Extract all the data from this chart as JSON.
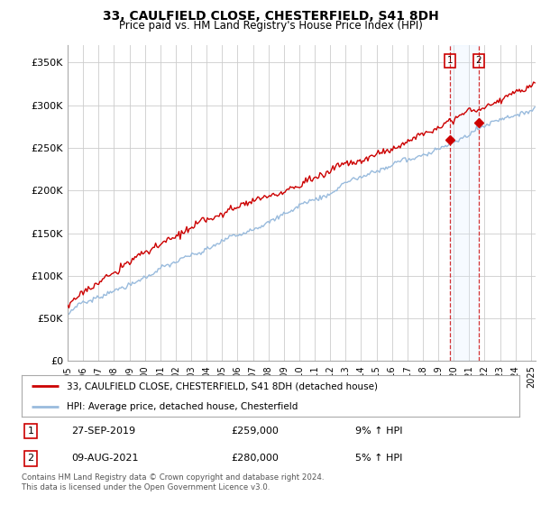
{
  "title": "33, CAULFIELD CLOSE, CHESTERFIELD, S41 8DH",
  "subtitle": "Price paid vs. HM Land Registry's House Price Index (HPI)",
  "ylim": [
    0,
    370000
  ],
  "yticks": [
    0,
    50000,
    100000,
    150000,
    200000,
    250000,
    300000,
    350000
  ],
  "line1_color": "#cc0000",
  "line2_color": "#99bbdd",
  "shade_color": "#ddeeff",
  "background_color": "#ffffff",
  "grid_color": "#cccccc",
  "legend_label1": "33, CAULFIELD CLOSE, CHESTERFIELD, S41 8DH (detached house)",
  "legend_label2": "HPI: Average price, detached house, Chesterfield",
  "sale1_date": "27-SEP-2019",
  "sale1_price": "£259,000",
  "sale1_hpi": "9% ↑ HPI",
  "sale2_date": "09-AUG-2021",
  "sale2_price": "£280,000",
  "sale2_hpi": "5% ↑ HPI",
  "footer": "Contains HM Land Registry data © Crown copyright and database right 2024.\nThis data is licensed under the Open Government Licence v3.0.",
  "sale1_year": 2019.75,
  "sale2_year": 2021.6,
  "sale1_value": 259000,
  "sale2_value": 280000,
  "xlim_start": 1995,
  "xlim_end": 2025.3
}
